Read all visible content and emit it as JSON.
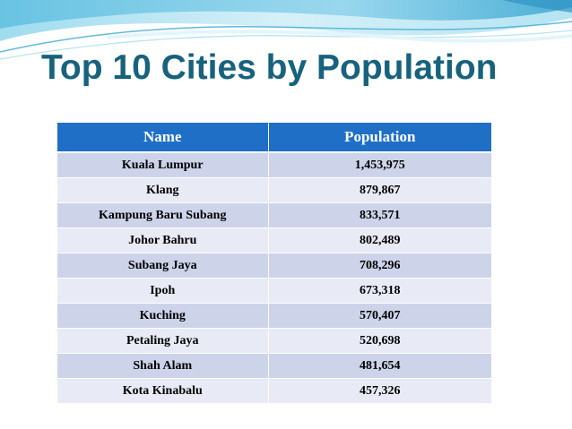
{
  "slide": {
    "title": "Top 10 Cities by Population"
  },
  "table": {
    "headers": {
      "name": "Name",
      "population": "Population"
    },
    "rows": [
      {
        "name": "Kuala Lumpur",
        "population": "1,453,975"
      },
      {
        "name": "Klang",
        "population": "879,867"
      },
      {
        "name": "Kampung Baru Subang",
        "population": "833,571"
      },
      {
        "name": "Johor Bahru",
        "population": "802,489"
      },
      {
        "name": "Subang Jaya",
        "population": "708,296"
      },
      {
        "name": "Ipoh",
        "population": "673,318"
      },
      {
        "name": "Kuching",
        "population": "570,407"
      },
      {
        "name": "Petaling Jaya",
        "population": "520,698"
      },
      {
        "name": "Shah Alam",
        "population": "481,654"
      },
      {
        "name": "Kota Kinabalu",
        "population": "457,326"
      }
    ]
  },
  "colors": {
    "title": "#17627c",
    "header_fill": "#1f6fc6",
    "row_odd_fill": "#cdd4ea",
    "row_even_fill": "#e8ebf5",
    "wave_light": "#c9ecf6",
    "wave_mid": "#8ed3ea",
    "wave_dark": "#4fb3d6"
  }
}
